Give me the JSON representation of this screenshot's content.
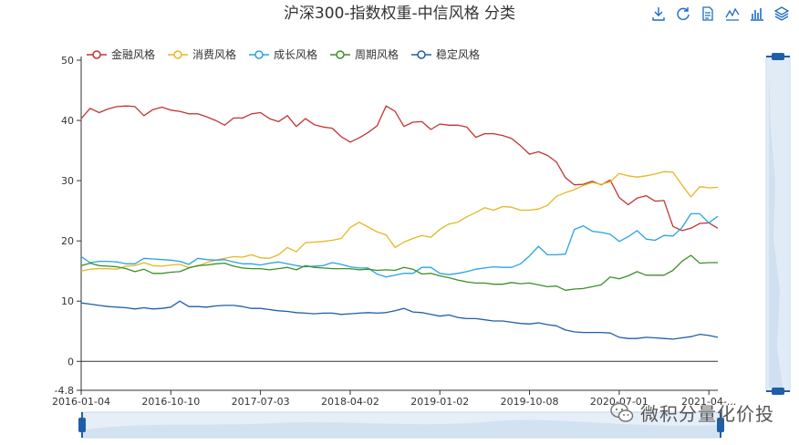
{
  "toolbar": {
    "items": [
      {
        "name": "download-icon",
        "label": "Save as image"
      },
      {
        "name": "refresh-icon",
        "label": "Restore"
      },
      {
        "name": "data-view-icon",
        "label": "Data view"
      },
      {
        "name": "line-chart-icon",
        "label": "Line chart"
      },
      {
        "name": "bar-chart-icon",
        "label": "Bar chart"
      },
      {
        "name": "stack-icon",
        "label": "Stack"
      }
    ],
    "color": "#1e6cc4"
  },
  "watermark": {
    "text": "微积分量化价投"
  },
  "chart_data": {
    "type": "line",
    "title": "沪深300-指数权重-中信风格 分类",
    "xlabel": "",
    "ylabel": "",
    "ylim": [
      -4.8,
      50
    ],
    "yticks": [
      50,
      40,
      30,
      20,
      10,
      0,
      -4.8
    ],
    "xtick_labels": [
      "2016-01-04",
      "2016-10-10",
      "2017-07-03",
      "2018-04-02",
      "2019-01-02",
      "2019-10-08",
      "2020-07-01",
      "2021-04-..."
    ],
    "xtick_index": [
      0,
      10,
      20,
      30,
      40,
      50,
      60,
      70
    ],
    "legend_position": "top-left",
    "grid": false,
    "series": [
      {
        "name": "金融风格",
        "color": "#c23531",
        "values": [
          40.3,
          42.0,
          41.3,
          41.9,
          42.3,
          42.4,
          42.3,
          40.8,
          41.8,
          42.2,
          41.7,
          41.5,
          41.1,
          41.1,
          40.6,
          40.0,
          39.2,
          40.4,
          40.4,
          41.1,
          41.3,
          40.3,
          39.8,
          40.8,
          39.0,
          40.3,
          39.3,
          38.9,
          38.7,
          37.3,
          36.4,
          37.1,
          38.0,
          39.1,
          42.4,
          41.5,
          39.0,
          39.7,
          39.8,
          38.5,
          39.4,
          39.2,
          39.2,
          38.9,
          37.2,
          37.8,
          37.8,
          37.5,
          37.0,
          35.8,
          34.4,
          34.8,
          34.2,
          33.1,
          30.5,
          29.3,
          29.4,
          29.9,
          29.3,
          30.1,
          27.2,
          26.0,
          27.1,
          27.5,
          26.6,
          26.7,
          22.4,
          21.7,
          22.1,
          22.9,
          23.0,
          22.1
        ]
      },
      {
        "name": "消费风格",
        "color": "#e5b722",
        "values": [
          15.0,
          15.3,
          15.4,
          15.4,
          15.3,
          15.8,
          15.9,
          16.4,
          15.9,
          15.8,
          16.0,
          16.1,
          15.6,
          15.8,
          16.4,
          16.8,
          17.1,
          17.4,
          17.3,
          17.7,
          17.2,
          17.1,
          17.7,
          18.9,
          18.2,
          19.7,
          19.8,
          19.9,
          20.1,
          20.4,
          22.2,
          23.1,
          22.3,
          21.5,
          21.0,
          18.9,
          19.8,
          20.4,
          20.9,
          20.6,
          21.9,
          22.8,
          23.1,
          24.0,
          24.7,
          25.5,
          25.1,
          25.7,
          25.6,
          25.1,
          25.1,
          25.3,
          25.9,
          27.4,
          28.0,
          28.5,
          29.2,
          29.7,
          29.4,
          29.8,
          31.2,
          30.8,
          30.6,
          30.8,
          31.1,
          31.5,
          31.4,
          29.3,
          27.3,
          29.0,
          28.8,
          28.9
        ]
      },
      {
        "name": "成长风格",
        "color": "#27a3e4",
        "values": [
          17.4,
          16.4,
          16.6,
          16.6,
          16.5,
          16.2,
          16.2,
          17.1,
          17.0,
          16.9,
          16.8,
          16.6,
          16.1,
          17.1,
          16.9,
          16.8,
          16.9,
          16.5,
          16.2,
          16.2,
          16.0,
          16.3,
          16.5,
          16.2,
          15.9,
          15.7,
          15.8,
          15.9,
          16.4,
          16.1,
          15.7,
          15.5,
          15.5,
          14.5,
          14.0,
          14.3,
          14.6,
          14.6,
          15.6,
          15.6,
          14.6,
          14.4,
          14.6,
          14.9,
          15.3,
          15.5,
          15.7,
          15.6,
          15.6,
          16.2,
          17.5,
          19.1,
          17.7,
          17.7,
          17.8,
          21.9,
          22.5,
          21.6,
          21.4,
          21.1,
          19.9,
          20.7,
          21.7,
          20.3,
          20.1,
          20.9,
          20.8,
          22.2,
          24.5,
          24.5,
          23.0,
          24.1
        ]
      },
      {
        "name": "周期风格",
        "color": "#3d8f2a",
        "values": [
          15.9,
          16.3,
          15.9,
          15.8,
          15.7,
          15.4,
          14.9,
          15.3,
          14.6,
          14.6,
          14.8,
          14.9,
          15.5,
          15.9,
          16.0,
          16.2,
          16.3,
          15.8,
          15.5,
          15.4,
          15.4,
          15.2,
          15.4,
          15.6,
          15.2,
          15.9,
          15.6,
          15.5,
          15.4,
          15.4,
          15.4,
          15.2,
          15.3,
          15.1,
          15.2,
          15.1,
          15.6,
          15.3,
          14.5,
          14.6,
          14.2,
          13.9,
          13.5,
          13.2,
          13.0,
          13.0,
          12.8,
          12.8,
          13.1,
          12.9,
          13.0,
          12.7,
          12.4,
          12.5,
          11.8,
          12.0,
          12.1,
          12.4,
          12.7,
          14.0,
          13.7,
          14.2,
          14.9,
          14.3,
          14.3,
          14.3,
          15.1,
          16.6,
          17.6,
          16.3,
          16.4,
          16.4
        ]
      },
      {
        "name": "稳定风格",
        "color": "#1f5fa8",
        "values": [
          9.7,
          9.5,
          9.3,
          9.1,
          9.0,
          8.9,
          8.7,
          8.9,
          8.7,
          8.8,
          9.0,
          10.0,
          9.1,
          9.1,
          9.0,
          9.2,
          9.3,
          9.3,
          9.1,
          8.8,
          8.8,
          8.6,
          8.4,
          8.3,
          8.1,
          8.0,
          7.9,
          8.0,
          8.0,
          7.8,
          7.9,
          8.0,
          8.1,
          8.0,
          8.1,
          8.4,
          8.8,
          8.2,
          8.1,
          7.8,
          7.5,
          7.7,
          7.3,
          7.1,
          7.1,
          6.9,
          6.7,
          6.7,
          6.5,
          6.3,
          6.2,
          6.4,
          6.1,
          5.9,
          5.2,
          4.9,
          4.8,
          4.8,
          4.8,
          4.7,
          4.0,
          3.8,
          3.8,
          4.0,
          3.9,
          3.8,
          3.7,
          3.9,
          4.1,
          4.5,
          4.3,
          4.0
        ]
      }
    ]
  }
}
